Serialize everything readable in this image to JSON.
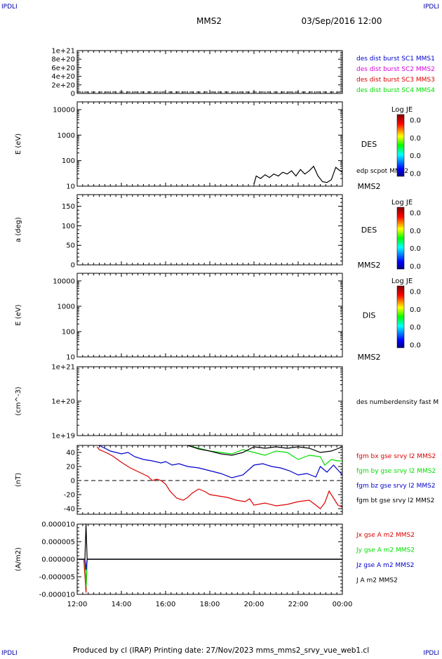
{
  "corners": {
    "tl": "IPDLI",
    "tr": "IPDLI",
    "bl": "IPDLI",
    "br": "IPDLI"
  },
  "header": {
    "spacecraft": "MMS2",
    "datetime": "03/Sep/2016 12:00"
  },
  "footer": {
    "text": "Produced by cl (IRAP)   Printing date: 27/Nov/2023   mms_mms2_srvy_vue_web1.cl"
  },
  "colors": {
    "red": "#dd0000",
    "green": "#00dd00",
    "blue": "#0000cc",
    "magenta": "#dd00dd",
    "black": "#000000"
  },
  "chart_data": [
    {
      "type": "line",
      "panel": "dist-burst",
      "y_ticks": [
        "1e+21",
        "8e+20",
        "6e+20",
        "4e+20",
        "2e+20",
        "0"
      ],
      "ylim": [
        0,
        1e+21
      ],
      "reference_line": 0,
      "legend": [
        {
          "name": "des dist burst SC1 MMS1",
          "color": "#0000cc"
        },
        {
          "name": "des dist burst SC2 MMS2",
          "color": "#dd00dd"
        },
        {
          "name": "des dist burst SC3 MMS3",
          "color": "#dd0000"
        },
        {
          "name": "des dist burst SC4 MMS4",
          "color": "#00dd00"
        }
      ]
    },
    {
      "type": "heatmap",
      "panel": "des-energy",
      "ylabel": "E (eV)",
      "yscale": "log",
      "ylim": [
        10,
        20000
      ],
      "y_ticks": [
        "10000",
        "1000",
        "100",
        "10"
      ],
      "species": "DES",
      "spacecraft": "MMS2",
      "overlay_label": "edp scpot MMS2",
      "overlay_series": {
        "name": "edp scpot MMS2",
        "x": [
          20.0,
          20.1,
          20.3,
          20.5,
          20.7,
          20.9,
          21.1,
          21.3,
          21.5,
          21.7,
          21.9,
          22.1,
          22.3,
          22.5,
          22.7,
          22.9,
          23.1,
          23.3,
          23.5,
          23.7,
          23.9,
          24.0
        ],
        "y": [
          12,
          25,
          20,
          28,
          22,
          30,
          25,
          35,
          30,
          40,
          25,
          45,
          30,
          40,
          60,
          25,
          15,
          14,
          18,
          55,
          40,
          35
        ]
      },
      "colorbar": {
        "title": "Log JE",
        "ticks": [
          "0.0",
          "0.0",
          "0.0",
          "0.0"
        ]
      }
    },
    {
      "type": "heatmap",
      "panel": "des-pitch",
      "ylabel": "a (deg)",
      "ylim": [
        0,
        180
      ],
      "y_ticks": [
        "150",
        "100",
        "50",
        "0"
      ],
      "species": "DES",
      "spacecraft": "MMS2",
      "colorbar": {
        "title": "Log JE",
        "ticks": [
          "0.0",
          "0.0",
          "0.0",
          "0.0"
        ]
      }
    },
    {
      "type": "heatmap",
      "panel": "dis-energy",
      "ylabel": "E (eV)",
      "yscale": "log",
      "ylim": [
        10,
        20000
      ],
      "y_ticks": [
        "10000",
        "1000",
        "100",
        "10"
      ],
      "species": "DIS",
      "spacecraft": "MMS2",
      "colorbar": {
        "title": "Log JE",
        "ticks": [
          "0.0",
          "0.0",
          "0.0",
          "0.0"
        ]
      }
    },
    {
      "type": "line",
      "panel": "density",
      "ylabel": "(cm^-3)",
      "yscale": "log",
      "ylim": [
        1e+19,
        1e+21
      ],
      "y_ticks": [
        "1e+21",
        "1e+20",
        "1e+19"
      ],
      "legend": [
        {
          "name": "des numberdensity fast M",
          "color": "#000000"
        }
      ]
    },
    {
      "type": "line",
      "panel": "magnetic-field",
      "ylabel": "(nT)",
      "ylim": [
        -48,
        50
      ],
      "y_ticks": [
        "40",
        "20",
        "0",
        "-20",
        "-40"
      ],
      "reference_line": 0,
      "series": [
        {
          "name": "fgm bx gse srvy l2 MMS2",
          "color": "#dd0000",
          "x": [
            12.9,
            13.0,
            13.3,
            13.6,
            14.0,
            14.4,
            14.8,
            15.2,
            15.4,
            15.6,
            15.8,
            16.0,
            16.2,
            16.5,
            16.8,
            17.0,
            17.2,
            17.5,
            17.8,
            18.0,
            18.4,
            18.8,
            19.2,
            19.6,
            19.8,
            20.0,
            20.5,
            21.0,
            21.5,
            22.0,
            22.5,
            22.8,
            23.0,
            23.2,
            23.4,
            23.6,
            23.8,
            24.0
          ],
          "y": [
            48,
            44,
            40,
            35,
            26,
            18,
            12,
            6,
            0,
            2,
            0,
            -5,
            -15,
            -25,
            -28,
            -24,
            -18,
            -12,
            -16,
            -20,
            -22,
            -24,
            -28,
            -30,
            -26,
            -35,
            -32,
            -36,
            -34,
            -30,
            -28,
            -35,
            -40,
            -32,
            -15,
            -25,
            -35,
            -38
          ]
        },
        {
          "name": "fgm by gse srvy l2 MMS2",
          "color": "#00dd00",
          "x": [
            17.0,
            17.5,
            18.0,
            18.5,
            19.0,
            19.5,
            20.0,
            20.5,
            21.0,
            21.5,
            22.0,
            22.5,
            23.0,
            23.2,
            23.5,
            23.8,
            24.0
          ],
          "y": [
            50,
            46,
            42,
            40,
            38,
            44,
            40,
            36,
            42,
            40,
            30,
            36,
            34,
            22,
            30,
            28,
            28
          ]
        },
        {
          "name": "fgm bz gse srvy l2 MMS2",
          "color": "#0000cc",
          "x": [
            13.0,
            13.5,
            14.0,
            14.3,
            14.6,
            15.0,
            15.4,
            15.8,
            16.0,
            16.3,
            16.6,
            17.0,
            17.5,
            18.0,
            18.5,
            19.0,
            19.5,
            20.0,
            20.4,
            20.8,
            21.2,
            21.6,
            22.0,
            22.4,
            22.8,
            23.0,
            23.3,
            23.6,
            23.8,
            24.0
          ],
          "y": [
            50,
            42,
            38,
            40,
            34,
            30,
            28,
            25,
            27,
            22,
            24,
            20,
            18,
            14,
            10,
            4,
            8,
            22,
            24,
            20,
            18,
            14,
            8,
            10,
            5,
            20,
            12,
            22,
            15,
            8
          ]
        },
        {
          "name": "fgm bt gse srvy l2 MMS2",
          "color": "#000000",
          "x": [
            17.0,
            17.5,
            18.0,
            18.5,
            19.0,
            19.5,
            20.0,
            20.5,
            21.0,
            21.5,
            22.0,
            22.5,
            23.0,
            23.5,
            24.0
          ],
          "y": [
            50,
            45,
            42,
            38,
            36,
            40,
            48,
            46,
            48,
            46,
            48,
            46,
            40,
            42,
            48
          ]
        }
      ]
    },
    {
      "type": "line",
      "panel": "current-density",
      "ylabel": "(A/m2)",
      "ylim": [
        -1e-05,
        1e-05
      ],
      "y_ticks": [
        "0.000010",
        "0.000005",
        "0.000000",
        "-0.000005",
        "-0.000010"
      ],
      "x_ticks": [
        "12:00",
        "14:00",
        "16:00",
        "18:00",
        "20:00",
        "22:00",
        "00:00"
      ],
      "xlim": [
        12,
        24
      ],
      "series": [
        {
          "name": "Jx gse A m2 MMS2",
          "color": "#dd0000",
          "x": [
            12.0,
            12.3,
            12.4,
            12.45,
            12.5,
            24.0
          ],
          "y": [
            0,
            0,
            -9.5e-06,
            0,
            0,
            0
          ]
        },
        {
          "name": "Jy gse A m2 MMS2",
          "color": "#00dd00",
          "x": [
            12.0,
            12.35,
            12.4,
            12.45,
            24.0
          ],
          "y": [
            0,
            0,
            -8e-06,
            0,
            0
          ]
        },
        {
          "name": "Jz gse A m2 MMS2",
          "color": "#0000cc",
          "x": [
            12.0,
            12.35,
            12.4,
            12.45,
            24.0
          ],
          "y": [
            0,
            0,
            -3e-06,
            0,
            0
          ]
        },
        {
          "name": "J A m2 MMS2",
          "color": "#000000",
          "x": [
            12.0,
            12.35,
            12.4,
            12.45,
            24.0
          ],
          "y": [
            0,
            0,
            1e-05,
            0,
            0
          ]
        }
      ]
    }
  ]
}
